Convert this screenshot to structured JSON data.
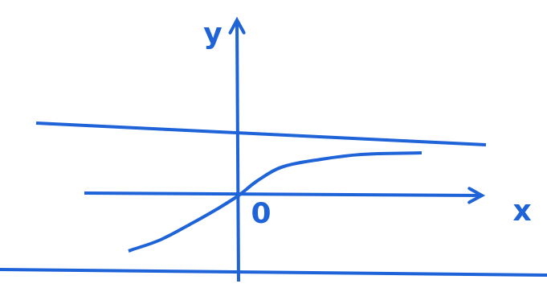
{
  "chart_data": {
    "type": "scatter",
    "xlim": [
      -2.97,
      3.84
    ],
    "ylim": [
      -1.15,
      2.43
    ],
    "tick_labels": false,
    "grid": false,
    "color": "#1f63d8",
    "series": [
      {
        "color": "#1f63d8",
        "line_style": "solid",
        "marker": "none",
        "x": [
          -1.37,
          -0.97,
          -0.57,
          -0.27,
          0,
          0.23,
          0.53,
          1.03,
          1.53,
          2.28
        ],
        "values": [
          -0.69,
          -0.55,
          -0.34,
          -0.17,
          0,
          0.18,
          0.35,
          0.45,
          0.51,
          0.53
        ]
      },
      {
        "color": "#1f63d8",
        "line_style": "solid",
        "marker": "none",
        "x": [
          -2.52,
          3.08
        ],
        "values": [
          0.9,
          0.63
        ]
      },
      {
        "color": "#1f63d8",
        "line_style": "solid",
        "marker": "none",
        "x": [
          -2.97,
          3.84
        ],
        "values": [
          -0.92,
          -0.99
        ]
      },
      {
        "color": "#1f63d8",
        "line_style": "solid",
        "marker": "arrow",
        "x": [
          -1.92,
          3.03
        ],
        "values": [
          0.03,
          0
        ]
      },
      {
        "color": "#1f63d8",
        "line_style": "solid",
        "marker": "arrow",
        "x": [
          0,
          -0.02
        ],
        "values": [
          -1.07,
          2.18
        ]
      }
    ],
    "annotations": [
      {
        "text": "y",
        "x": -0.32,
        "y": 1.98
      },
      {
        "text": "x",
        "x": 3.53,
        "y": -0.22
      },
      {
        "text": "0",
        "x": 0.28,
        "y": -0.25
      }
    ]
  }
}
